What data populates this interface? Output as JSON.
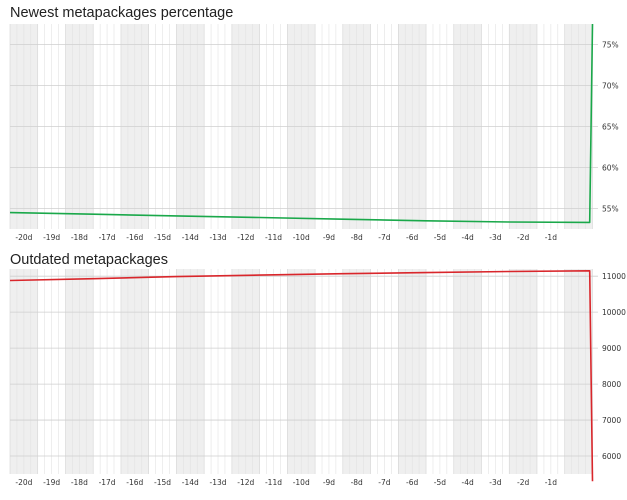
{
  "chart_data": [
    {
      "type": "line",
      "title": "Newest metapackages percentage",
      "color": "#1aa84a",
      "x_ticks": [
        "-20d",
        "-19d",
        "-18d",
        "-17d",
        "-16d",
        "-15d",
        "-14d",
        "-13d",
        "-12d",
        "-11d",
        "-10d",
        "-9d",
        "-8d",
        "-7d",
        "-6d",
        "-5d",
        "-4d",
        "-3d",
        "-2d",
        "-1d"
      ],
      "y_ticks": [
        "55%",
        "60%",
        "65%",
        "70%",
        "75%"
      ],
      "y_tick_values": [
        55,
        60,
        65,
        70,
        75
      ],
      "ylim": [
        52.5,
        77.5
      ],
      "xlim": [
        -21,
        0.2
      ],
      "grid": true,
      "series": [
        {
          "x": [
            -21,
            -18,
            -15,
            -12,
            -9,
            -6,
            -3,
            -0.1,
            0
          ],
          "y": [
            54.5,
            54.3,
            54.1,
            53.9,
            53.7,
            53.5,
            53.35,
            53.3,
            77.5
          ]
        }
      ]
    },
    {
      "type": "line",
      "title": "Outdated metapackages",
      "color": "#d9262b",
      "x_ticks": [
        "-20d",
        "-19d",
        "-18d",
        "-17d",
        "-16d",
        "-15d",
        "-14d",
        "-13d",
        "-12d",
        "-11d",
        "-10d",
        "-9d",
        "-8d",
        "-7d",
        "-6d",
        "-5d",
        "-4d",
        "-3d",
        "-2d",
        "-1d"
      ],
      "y_ticks": [
        "6000",
        "7000",
        "8000",
        "9000",
        "10000",
        "11000"
      ],
      "y_tick_values": [
        6000,
        7000,
        8000,
        9000,
        10000,
        11000
      ],
      "ylim": [
        5500,
        11200
      ],
      "xlim": [
        -21,
        0.2
      ],
      "grid": true,
      "series": [
        {
          "x": [
            -21,
            -18,
            -15,
            -12,
            -9,
            -6,
            -3,
            -0.1,
            0
          ],
          "y": [
            10880,
            10930,
            10990,
            11030,
            11070,
            11100,
            11130,
            11150,
            5300
          ]
        }
      ]
    }
  ]
}
